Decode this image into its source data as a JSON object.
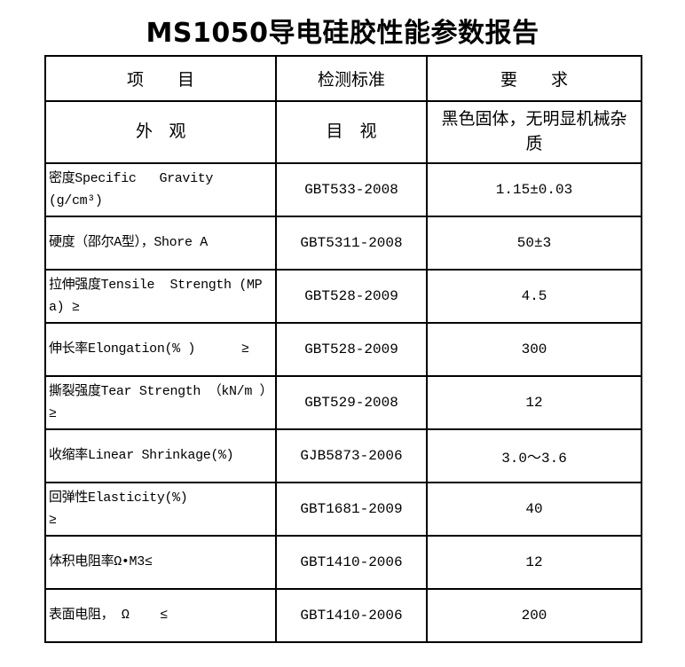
{
  "title": "MS1050导电硅胶性能参数报告",
  "colors": {
    "background": "#ffffff",
    "border": "#000000",
    "text": "#000000"
  },
  "table": {
    "headers": [
      "项　　目",
      "检测标准",
      "要　　求"
    ],
    "rows": [
      {
        "item": "外　观",
        "standard": "目　视",
        "requirement": "黑色固体，无明显机械杂\n质"
      },
      {
        "item": "密度Specific   Gravity\n(g/cm³)",
        "standard": "GBT533-2008",
        "requirement": "1.15±0.03"
      },
      {
        "item": "硬度（邵尔A型），Shore A",
        "standard": "GBT5311-2008",
        "requirement": "50±3"
      },
      {
        "item": "拉伸强度Tensile  Strength (MPa) ≥",
        "standard": "GBT528-2009",
        "requirement": "4.5"
      },
      {
        "item": "伸长率Elongation(% )      ≥",
        "standard": "GBT528-2009",
        "requirement": "300"
      },
      {
        "item": "撕裂强度Tear Strength （kN/m ）≥",
        "standard": "GBT529-2008",
        "requirement": "12"
      },
      {
        "item": "收缩率Linear Shrinkage(%)",
        "standard": "GJB5873-2006",
        "requirement": "3.0～3.6"
      },
      {
        "item": "回弹性Elasticity(%)\n≥",
        "standard": "GBT1681-2009",
        "requirement": "40"
      },
      {
        "item": "体积电阻率Ω•M3≤",
        "standard": "GBT1410-2006",
        "requirement": "12"
      },
      {
        "item": "表面电阻， Ω    ≤",
        "standard": "GBT1410-2006",
        "requirement": "200"
      }
    ]
  }
}
